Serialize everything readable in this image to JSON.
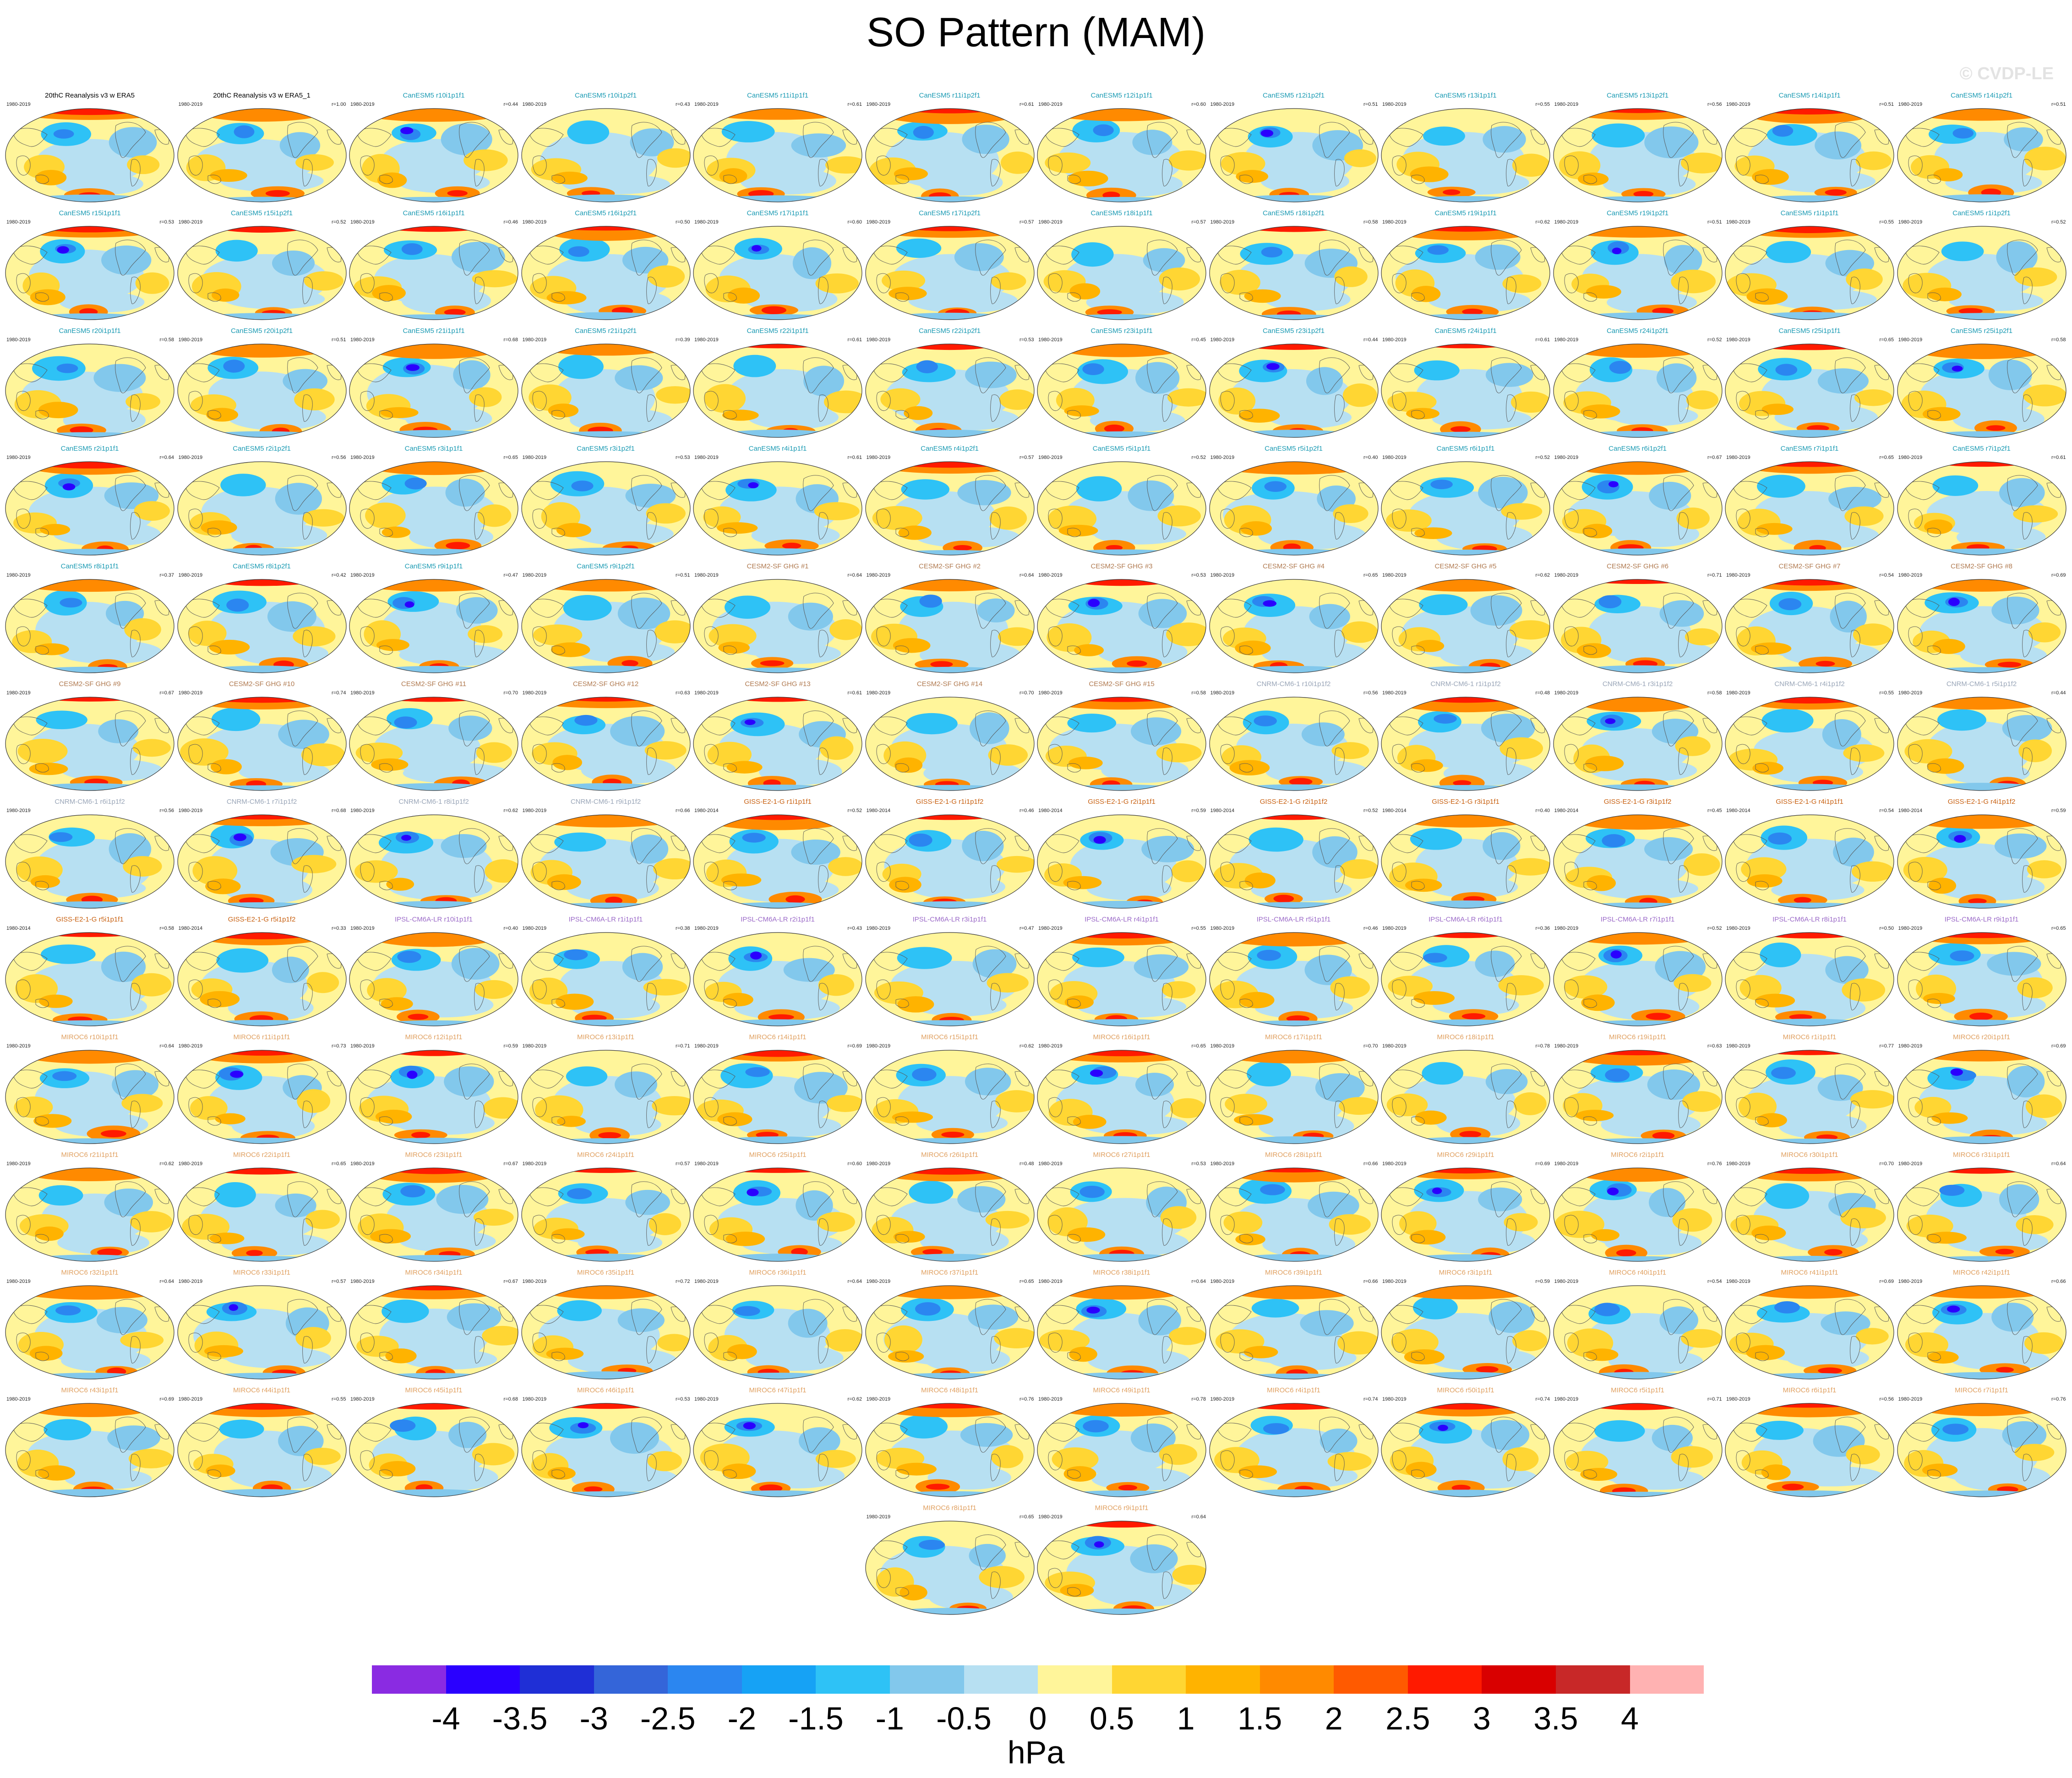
{
  "title": "SO Pattern (MAM)",
  "watermark": "© CVDP-LE",
  "units": "hPa",
  "colorbar": {
    "labels": [
      "-4",
      "-3.5",
      "-3",
      "-2.5",
      "-2",
      "-1.5",
      "-1",
      "-0.5",
      "0",
      "0.5",
      "1",
      "1.5",
      "2",
      "2.5",
      "3",
      "3.5",
      "4"
    ],
    "colors": [
      "#8a2be2",
      "#2a00ff",
      "#1f2fd6",
      "#3465d9",
      "#2b86f0",
      "#16a2f5",
      "#2ec2f6",
      "#82c8ec",
      "#b7e0f2",
      "#fff59a",
      "#ffd633",
      "#ffb300",
      "#ff8a00",
      "#ff5a00",
      "#ff1a00",
      "#d90000",
      "#c82828",
      "#ffb2b2"
    ]
  },
  "group_colors": {
    "obs": "#000000",
    "CanESM5": "#1a9ab3",
    "CESM2": "#b07a50",
    "CNRM": "#9aa6b8",
    "GISS": "#c86010",
    "IPSL": "#9b6ac8",
    "MIROC": "#e0a060"
  },
  "panels": [
    {
      "label": "20thC Reanalysis v3 w ERA5",
      "years": "1980-2019",
      "corr": "",
      "group": "obs"
    },
    {
      "label": "20thC Reanalysis v3 w ERA5_1",
      "years": "1980-2019",
      "corr": "r=1.00",
      "group": "obs"
    },
    {
      "label": "CanESM5 r10i1p1f1",
      "years": "1980-2019",
      "corr": "r=0.44",
      "group": "CanESM5"
    },
    {
      "label": "CanESM5 r10i1p2f1",
      "years": "1980-2019",
      "corr": "r=0.43",
      "group": "CanESM5"
    },
    {
      "label": "CanESM5 r11i1p1f1",
      "years": "1980-2019",
      "corr": "r=0.61",
      "group": "CanESM5"
    },
    {
      "label": "CanESM5 r11i1p2f1",
      "years": "1980-2019",
      "corr": "r=0.61",
      "group": "CanESM5"
    },
    {
      "label": "CanESM5 r12i1p1f1",
      "years": "1980-2019",
      "corr": "r=0.60",
      "group": "CanESM5"
    },
    {
      "label": "CanESM5 r12i1p2f1",
      "years": "1980-2019",
      "corr": "r=0.51",
      "group": "CanESM5"
    },
    {
      "label": "CanESM5 r13i1p1f1",
      "years": "1980-2019",
      "corr": "r=0.55",
      "group": "CanESM5"
    },
    {
      "label": "CanESM5 r13i1p2f1",
      "years": "1980-2019",
      "corr": "r=0.56",
      "group": "CanESM5"
    },
    {
      "label": "CanESM5 r14i1p1f1",
      "years": "1980-2019",
      "corr": "r=0.51",
      "group": "CanESM5"
    },
    {
      "label": "CanESM5 r14i1p2f1",
      "years": "1980-2019",
      "corr": "r=0.51",
      "group": "CanESM5"
    },
    {
      "label": "CanESM5 r15i1p1f1",
      "years": "1980-2019",
      "corr": "r=0.53",
      "group": "CanESM5"
    },
    {
      "label": "CanESM5 r15i1p2f1",
      "years": "1980-2019",
      "corr": "r=0.52",
      "group": "CanESM5"
    },
    {
      "label": "CanESM5 r16i1p1f1",
      "years": "1980-2019",
      "corr": "r=0.46",
      "group": "CanESM5"
    },
    {
      "label": "CanESM5 r16i1p2f1",
      "years": "1980-2019",
      "corr": "r=0.50",
      "group": "CanESM5"
    },
    {
      "label": "CanESM5 r17i1p1f1",
      "years": "1980-2019",
      "corr": "r=0.60",
      "group": "CanESM5"
    },
    {
      "label": "CanESM5 r17i1p2f1",
      "years": "1980-2019",
      "corr": "r=0.57",
      "group": "CanESM5"
    },
    {
      "label": "CanESM5 r18i1p1f1",
      "years": "1980-2019",
      "corr": "r=0.57",
      "group": "CanESM5"
    },
    {
      "label": "CanESM5 r18i1p2f1",
      "years": "1980-2019",
      "corr": "r=0.58",
      "group": "CanESM5"
    },
    {
      "label": "CanESM5 r19i1p1f1",
      "years": "1980-2019",
      "corr": "r=0.62",
      "group": "CanESM5"
    },
    {
      "label": "CanESM5 r19i1p2f1",
      "years": "1980-2019",
      "corr": "r=0.51",
      "group": "CanESM5"
    },
    {
      "label": "CanESM5 r1i1p1f1",
      "years": "1980-2019",
      "corr": "r=0.55",
      "group": "CanESM5"
    },
    {
      "label": "CanESM5 r1i1p2f1",
      "years": "1980-2019",
      "corr": "r=0.52",
      "group": "CanESM5"
    },
    {
      "label": "CanESM5 r20i1p1f1",
      "years": "1980-2019",
      "corr": "r=0.58",
      "group": "CanESM5"
    },
    {
      "label": "CanESM5 r20i1p2f1",
      "years": "1980-2019",
      "corr": "r=0.51",
      "group": "CanESM5"
    },
    {
      "label": "CanESM5 r21i1p1f1",
      "years": "1980-2019",
      "corr": "r=0.68",
      "group": "CanESM5"
    },
    {
      "label": "CanESM5 r21i1p2f1",
      "years": "1980-2019",
      "corr": "r=0.39",
      "group": "CanESM5"
    },
    {
      "label": "CanESM5 r22i1p1f1",
      "years": "1980-2019",
      "corr": "r=0.61",
      "group": "CanESM5"
    },
    {
      "label": "CanESM5 r22i1p2f1",
      "years": "1980-2019",
      "corr": "r=0.53",
      "group": "CanESM5"
    },
    {
      "label": "CanESM5 r23i1p1f1",
      "years": "1980-2019",
      "corr": "r=0.45",
      "group": "CanESM5"
    },
    {
      "label": "CanESM5 r23i1p2f1",
      "years": "1980-2019",
      "corr": "r=0.44",
      "group": "CanESM5"
    },
    {
      "label": "CanESM5 r24i1p1f1",
      "years": "1980-2019",
      "corr": "r=0.61",
      "group": "CanESM5"
    },
    {
      "label": "CanESM5 r24i1p2f1",
      "years": "1980-2019",
      "corr": "r=0.52",
      "group": "CanESM5"
    },
    {
      "label": "CanESM5 r25i1p1f1",
      "years": "1980-2019",
      "corr": "r=0.65",
      "group": "CanESM5"
    },
    {
      "label": "CanESM5 r25i1p2f1",
      "years": "1980-2019",
      "corr": "r=0.58",
      "group": "CanESM5"
    },
    {
      "label": "CanESM5 r2i1p1f1",
      "years": "1980-2019",
      "corr": "r=0.64",
      "group": "CanESM5"
    },
    {
      "label": "CanESM5 r2i1p2f1",
      "years": "1980-2019",
      "corr": "r=0.56",
      "group": "CanESM5"
    },
    {
      "label": "CanESM5 r3i1p1f1",
      "years": "1980-2019",
      "corr": "r=0.65",
      "group": "CanESM5"
    },
    {
      "label": "CanESM5 r3i1p2f1",
      "years": "1980-2019",
      "corr": "r=0.53",
      "group": "CanESM5"
    },
    {
      "label": "CanESM5 r4i1p1f1",
      "years": "1980-2019",
      "corr": "r=0.61",
      "group": "CanESM5"
    },
    {
      "label": "CanESM5 r4i1p2f1",
      "years": "1980-2019",
      "corr": "r=0.57",
      "group": "CanESM5"
    },
    {
      "label": "CanESM5 r5i1p1f1",
      "years": "1980-2019",
      "corr": "r=0.52",
      "group": "CanESM5"
    },
    {
      "label": "CanESM5 r5i1p2f1",
      "years": "1980-2019",
      "corr": "r=0.40",
      "group": "CanESM5"
    },
    {
      "label": "CanESM5 r6i1p1f1",
      "years": "1980-2019",
      "corr": "r=0.52",
      "group": "CanESM5"
    },
    {
      "label": "CanESM5 r6i1p2f1",
      "years": "1980-2019",
      "corr": "r=0.67",
      "group": "CanESM5"
    },
    {
      "label": "CanESM5 r7i1p1f1",
      "years": "1980-2019",
      "corr": "r=0.65",
      "group": "CanESM5"
    },
    {
      "label": "CanESM5 r7i1p2f1",
      "years": "1980-2019",
      "corr": "r=0.61",
      "group": "CanESM5"
    },
    {
      "label": "CanESM5 r8i1p1f1",
      "years": "1980-2019",
      "corr": "r=0.37",
      "group": "CanESM5"
    },
    {
      "label": "CanESM5 r8i1p2f1",
      "years": "1980-2019",
      "corr": "r=0.42",
      "group": "CanESM5"
    },
    {
      "label": "CanESM5 r9i1p1f1",
      "years": "1980-2019",
      "corr": "r=0.47",
      "group": "CanESM5"
    },
    {
      "label": "CanESM5 r9i1p2f1",
      "years": "1980-2019",
      "corr": "r=0.51",
      "group": "CanESM5"
    },
    {
      "label": "CESM2-SF GHG #1",
      "years": "1980-2019",
      "corr": "r=0.64",
      "group": "CESM2"
    },
    {
      "label": "CESM2-SF GHG #2",
      "years": "1980-2019",
      "corr": "r=0.64",
      "group": "CESM2"
    },
    {
      "label": "CESM2-SF GHG #3",
      "years": "1980-2019",
      "corr": "r=0.53",
      "group": "CESM2"
    },
    {
      "label": "CESM2-SF GHG #4",
      "years": "1980-2019",
      "corr": "r=0.65",
      "group": "CESM2"
    },
    {
      "label": "CESM2-SF GHG #5",
      "years": "1980-2019",
      "corr": "r=0.62",
      "group": "CESM2"
    },
    {
      "label": "CESM2-SF GHG #6",
      "years": "1980-2019",
      "corr": "r=0.71",
      "group": "CESM2"
    },
    {
      "label": "CESM2-SF GHG #7",
      "years": "1980-2019",
      "corr": "r=0.54",
      "group": "CESM2"
    },
    {
      "label": "CESM2-SF GHG #8",
      "years": "1980-2019",
      "corr": "r=0.69",
      "group": "CESM2"
    },
    {
      "label": "CESM2-SF GHG #9",
      "years": "1980-2019",
      "corr": "r=0.67",
      "group": "CESM2"
    },
    {
      "label": "CESM2-SF GHG #10",
      "years": "1980-2019",
      "corr": "r=0.74",
      "group": "CESM2"
    },
    {
      "label": "CESM2-SF GHG #11",
      "years": "1980-2019",
      "corr": "r=0.70",
      "group": "CESM2"
    },
    {
      "label": "CESM2-SF GHG #12",
      "years": "1980-2019",
      "corr": "r=0.63",
      "group": "CESM2"
    },
    {
      "label": "CESM2-SF GHG #13",
      "years": "1980-2019",
      "corr": "r=0.61",
      "group": "CESM2"
    },
    {
      "label": "CESM2-SF GHG #14",
      "years": "1980-2019",
      "corr": "r=0.70",
      "group": "CESM2"
    },
    {
      "label": "CESM2-SF GHG #15",
      "years": "1980-2019",
      "corr": "r=0.58",
      "group": "CESM2"
    },
    {
      "label": "CNRM-CM6-1 r10i1p1f2",
      "years": "1980-2019",
      "corr": "r=0.56",
      "group": "CNRM"
    },
    {
      "label": "CNRM-CM6-1 r1i1p1f2",
      "years": "1980-2019",
      "corr": "r=0.48",
      "group": "CNRM"
    },
    {
      "label": "CNRM-CM6-1 r3i1p1f2",
      "years": "1980-2019",
      "corr": "r=0.58",
      "group": "CNRM"
    },
    {
      "label": "CNRM-CM6-1 r4i1p1f2",
      "years": "1980-2019",
      "corr": "r=0.55",
      "group": "CNRM"
    },
    {
      "label": "CNRM-CM6-1 r5i1p1f2",
      "years": "1980-2019",
      "corr": "r=0.44",
      "group": "CNRM"
    },
    {
      "label": "CNRM-CM6-1 r6i1p1f2",
      "years": "1980-2019",
      "corr": "r=0.56",
      "group": "CNRM"
    },
    {
      "label": "CNRM-CM6-1 r7i1p1f2",
      "years": "1980-2019",
      "corr": "r=0.68",
      "group": "CNRM"
    },
    {
      "label": "CNRM-CM6-1 r8i1p1f2",
      "years": "1980-2019",
      "corr": "r=0.62",
      "group": "CNRM"
    },
    {
      "label": "CNRM-CM6-1 r9i1p1f2",
      "years": "1980-2019",
      "corr": "r=0.66",
      "group": "CNRM"
    },
    {
      "label": "GISS-E2-1-G r1i1p1f1",
      "years": "1980-2014",
      "corr": "r=0.52",
      "group": "GISS"
    },
    {
      "label": "GISS-E2-1-G r1i1p1f2",
      "years": "1980-2014",
      "corr": "r=0.46",
      "group": "GISS"
    },
    {
      "label": "GISS-E2-1-G r2i1p1f1",
      "years": "1980-2014",
      "corr": "r=0.59",
      "group": "GISS"
    },
    {
      "label": "GISS-E2-1-G r2i1p1f2",
      "years": "1980-2014",
      "corr": "r=0.52",
      "group": "GISS"
    },
    {
      "label": "GISS-E2-1-G r3i1p1f1",
      "years": "1980-2014",
      "corr": "r=0.40",
      "group": "GISS"
    },
    {
      "label": "GISS-E2-1-G r3i1p1f2",
      "years": "1980-2014",
      "corr": "r=0.45",
      "group": "GISS"
    },
    {
      "label": "GISS-E2-1-G r4i1p1f1",
      "years": "1980-2014",
      "corr": "r=0.54",
      "group": "GISS"
    },
    {
      "label": "GISS-E2-1-G r4i1p1f2",
      "years": "1980-2014",
      "corr": "r=0.59",
      "group": "GISS"
    },
    {
      "label": "GISS-E2-1-G r5i1p1f1",
      "years": "1980-2014",
      "corr": "r=0.58",
      "group": "GISS"
    },
    {
      "label": "GISS-E2-1-G r5i1p1f2",
      "years": "1980-2014",
      "corr": "r=0.33",
      "group": "GISS"
    },
    {
      "label": "IPSL-CM6A-LR r10i1p1f1",
      "years": "1980-2019",
      "corr": "r=0.40",
      "group": "IPSL"
    },
    {
      "label": "IPSL-CM6A-LR r1i1p1f1",
      "years": "1980-2019",
      "corr": "r=0.38",
      "group": "IPSL"
    },
    {
      "label": "IPSL-CM6A-LR r2i1p1f1",
      "years": "1980-2019",
      "corr": "r=0.43",
      "group": "IPSL"
    },
    {
      "label": "IPSL-CM6A-LR r3i1p1f1",
      "years": "1980-2019",
      "corr": "r=0.47",
      "group": "IPSL"
    },
    {
      "label": "IPSL-CM6A-LR r4i1p1f1",
      "years": "1980-2019",
      "corr": "r=0.55",
      "group": "IPSL"
    },
    {
      "label": "IPSL-CM6A-LR r5i1p1f1",
      "years": "1980-2019",
      "corr": "r=0.46",
      "group": "IPSL"
    },
    {
      "label": "IPSL-CM6A-LR r6i1p1f1",
      "years": "1980-2019",
      "corr": "r=0.36",
      "group": "IPSL"
    },
    {
      "label": "IPSL-CM6A-LR r7i1p1f1",
      "years": "1980-2019",
      "corr": "r=0.52",
      "group": "IPSL"
    },
    {
      "label": "IPSL-CM6A-LR r8i1p1f1",
      "years": "1980-2019",
      "corr": "r=0.50",
      "group": "IPSL"
    },
    {
      "label": "IPSL-CM6A-LR r9i1p1f1",
      "years": "1980-2019",
      "corr": "r=0.65",
      "group": "IPSL"
    },
    {
      "label": "MIROC6 r10i1p1f1",
      "years": "1980-2019",
      "corr": "r=0.64",
      "group": "MIROC"
    },
    {
      "label": "MIROC6 r11i1p1f1",
      "years": "1980-2019",
      "corr": "r=0.73",
      "group": "MIROC"
    },
    {
      "label": "MIROC6 r12i1p1f1",
      "years": "1980-2019",
      "corr": "r=0.59",
      "group": "MIROC"
    },
    {
      "label": "MIROC6 r13i1p1f1",
      "years": "1980-2019",
      "corr": "r=0.71",
      "group": "MIROC"
    },
    {
      "label": "MIROC6 r14i1p1f1",
      "years": "1980-2019",
      "corr": "r=0.69",
      "group": "MIROC"
    },
    {
      "label": "MIROC6 r15i1p1f1",
      "years": "1980-2019",
      "corr": "r=0.62",
      "group": "MIROC"
    },
    {
      "label": "MIROC6 r16i1p1f1",
      "years": "1980-2019",
      "corr": "r=0.65",
      "group": "MIROC"
    },
    {
      "label": "MIROC6 r17i1p1f1",
      "years": "1980-2019",
      "corr": "r=0.70",
      "group": "MIROC"
    },
    {
      "label": "MIROC6 r18i1p1f1",
      "years": "1980-2019",
      "corr": "r=0.78",
      "group": "MIROC"
    },
    {
      "label": "MIROC6 r19i1p1f1",
      "years": "1980-2019",
      "corr": "r=0.63",
      "group": "MIROC"
    },
    {
      "label": "MIROC6 r1i1p1f1",
      "years": "1980-2019",
      "corr": "r=0.77",
      "group": "MIROC"
    },
    {
      "label": "MIROC6 r20i1p1f1",
      "years": "1980-2019",
      "corr": "r=0.69",
      "group": "MIROC"
    },
    {
      "label": "MIROC6 r21i1p1f1",
      "years": "1980-2019",
      "corr": "r=0.62",
      "group": "MIROC"
    },
    {
      "label": "MIROC6 r22i1p1f1",
      "years": "1980-2019",
      "corr": "r=0.65",
      "group": "MIROC"
    },
    {
      "label": "MIROC6 r23i1p1f1",
      "years": "1980-2019",
      "corr": "r=0.67",
      "group": "MIROC"
    },
    {
      "label": "MIROC6 r24i1p1f1",
      "years": "1980-2019",
      "corr": "r=0.57",
      "group": "MIROC"
    },
    {
      "label": "MIROC6 r25i1p1f1",
      "years": "1980-2019",
      "corr": "r=0.60",
      "group": "MIROC"
    },
    {
      "label": "MIROC6 r26i1p1f1",
      "years": "1980-2019",
      "corr": "r=0.48",
      "group": "MIROC"
    },
    {
      "label": "MIROC6 r27i1p1f1",
      "years": "1980-2019",
      "corr": "r=0.53",
      "group": "MIROC"
    },
    {
      "label": "MIROC6 r28i1p1f1",
      "years": "1980-2019",
      "corr": "r=0.66",
      "group": "MIROC"
    },
    {
      "label": "MIROC6 r29i1p1f1",
      "years": "1980-2019",
      "corr": "r=0.69",
      "group": "MIROC"
    },
    {
      "label": "MIROC6 r2i1p1f1",
      "years": "1980-2019",
      "corr": "r=0.76",
      "group": "MIROC"
    },
    {
      "label": "MIROC6 r30i1p1f1",
      "years": "1980-2019",
      "corr": "r=0.70",
      "group": "MIROC"
    },
    {
      "label": "MIROC6 r31i1p1f1",
      "years": "1980-2019",
      "corr": "r=0.64",
      "group": "MIROC"
    },
    {
      "label": "MIROC6 r32i1p1f1",
      "years": "1980-2019",
      "corr": "r=0.64",
      "group": "MIROC"
    },
    {
      "label": "MIROC6 r33i1p1f1",
      "years": "1980-2019",
      "corr": "r=0.57",
      "group": "MIROC"
    },
    {
      "label": "MIROC6 r34i1p1f1",
      "years": "1980-2019",
      "corr": "r=0.67",
      "group": "MIROC"
    },
    {
      "label": "MIROC6 r35i1p1f1",
      "years": "1980-2019",
      "corr": "r=0.72",
      "group": "MIROC"
    },
    {
      "label": "MIROC6 r36i1p1f1",
      "years": "1980-2019",
      "corr": "r=0.64",
      "group": "MIROC"
    },
    {
      "label": "MIROC6 r37i1p1f1",
      "years": "1980-2019",
      "corr": "r=0.65",
      "group": "MIROC"
    },
    {
      "label": "MIROC6 r38i1p1f1",
      "years": "1980-2019",
      "corr": "r=0.64",
      "group": "MIROC"
    },
    {
      "label": "MIROC6 r39i1p1f1",
      "years": "1980-2019",
      "corr": "r=0.66",
      "group": "MIROC"
    },
    {
      "label": "MIROC6 r3i1p1f1",
      "years": "1980-2019",
      "corr": "r=0.59",
      "group": "MIROC"
    },
    {
      "label": "MIROC6 r40i1p1f1",
      "years": "1980-2019",
      "corr": "r=0.54",
      "group": "MIROC"
    },
    {
      "label": "MIROC6 r41i1p1f1",
      "years": "1980-2019",
      "corr": "r=0.69",
      "group": "MIROC"
    },
    {
      "label": "MIROC6 r42i1p1f1",
      "years": "1980-2019",
      "corr": "r=0.66",
      "group": "MIROC"
    },
    {
      "label": "MIROC6 r43i1p1f1",
      "years": "1980-2019",
      "corr": "r=0.69",
      "group": "MIROC"
    },
    {
      "label": "MIROC6 r44i1p1f1",
      "years": "1980-2019",
      "corr": "r=0.55",
      "group": "MIROC"
    },
    {
      "label": "MIROC6 r45i1p1f1",
      "years": "1980-2019",
      "corr": "r=0.68",
      "group": "MIROC"
    },
    {
      "label": "MIROC6 r46i1p1f1",
      "years": "1980-2019",
      "corr": "r=0.53",
      "group": "MIROC"
    },
    {
      "label": "MIROC6 r47i1p1f1",
      "years": "1980-2019",
      "corr": "r=0.62",
      "group": "MIROC"
    },
    {
      "label": "MIROC6 r48i1p1f1",
      "years": "1980-2019",
      "corr": "r=0.76",
      "group": "MIROC"
    },
    {
      "label": "MIROC6 r49i1p1f1",
      "years": "1980-2019",
      "corr": "r=0.78",
      "group": "MIROC"
    },
    {
      "label": "MIROC6 r4i1p1f1",
      "years": "1980-2019",
      "corr": "r=0.74",
      "group": "MIROC"
    },
    {
      "label": "MIROC6 r50i1p1f1",
      "years": "1980-2019",
      "corr": "r=0.74",
      "group": "MIROC"
    },
    {
      "label": "MIROC6 r5i1p1f1",
      "years": "1980-2019",
      "corr": "r=0.71",
      "group": "MIROC"
    },
    {
      "label": "MIROC6 r6i1p1f1",
      "years": "1980-2019",
      "corr": "r=0.56",
      "group": "MIROC"
    },
    {
      "label": "MIROC6 r7i1p1f1",
      "years": "1980-2019",
      "corr": "r=0.76",
      "group": "MIROC"
    },
    {
      "label": "MIROC6 r8i1p1f1",
      "years": "1980-2019",
      "corr": "r=0.65",
      "group": "MIROC"
    },
    {
      "label": "MIROC6 r9i1p1f1",
      "years": "1980-2019",
      "corr": "r=0.64",
      "group": "MIROC"
    }
  ]
}
